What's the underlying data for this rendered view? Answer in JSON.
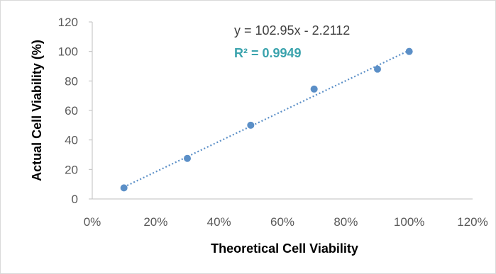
{
  "chart_data": {
    "type": "scatter",
    "xlabel": "Theoretical Cell Viability",
    "ylabel": "Actual Cell Viability (%)",
    "xlim": [
      0,
      1.2
    ],
    "ylim": [
      0,
      120
    ],
    "x_ticks": [
      "0%",
      "20%",
      "40%",
      "60%",
      "80%",
      "100%",
      "120%"
    ],
    "y_ticks": [
      "0",
      "20",
      "40",
      "60",
      "80",
      "100",
      "120"
    ],
    "x_tick_values": [
      0,
      0.2,
      0.4,
      0.6,
      0.8,
      1.0,
      1.2
    ],
    "y_tick_values": [
      0,
      20,
      40,
      60,
      80,
      100,
      120
    ],
    "points": [
      {
        "x": 0.1,
        "y": 7.5
      },
      {
        "x": 0.3,
        "y": 27.5
      },
      {
        "x": 0.5,
        "y": 50
      },
      {
        "x": 0.7,
        "y": 74.5
      },
      {
        "x": 0.9,
        "y": 88
      },
      {
        "x": 1.0,
        "y": 100
      }
    ],
    "trendline": {
      "slope": 102.95,
      "intercept": -2.2112,
      "equation": "y = 102.95x - 2.2112",
      "r2_label": "R² = 0.9949"
    },
    "grid": false,
    "legend": "none",
    "colors": {
      "marker": "#5b8fc7",
      "trendline": "#5b8fc7",
      "r2_text": "#3aa3ad",
      "axis": "#bfbfbf"
    }
  }
}
